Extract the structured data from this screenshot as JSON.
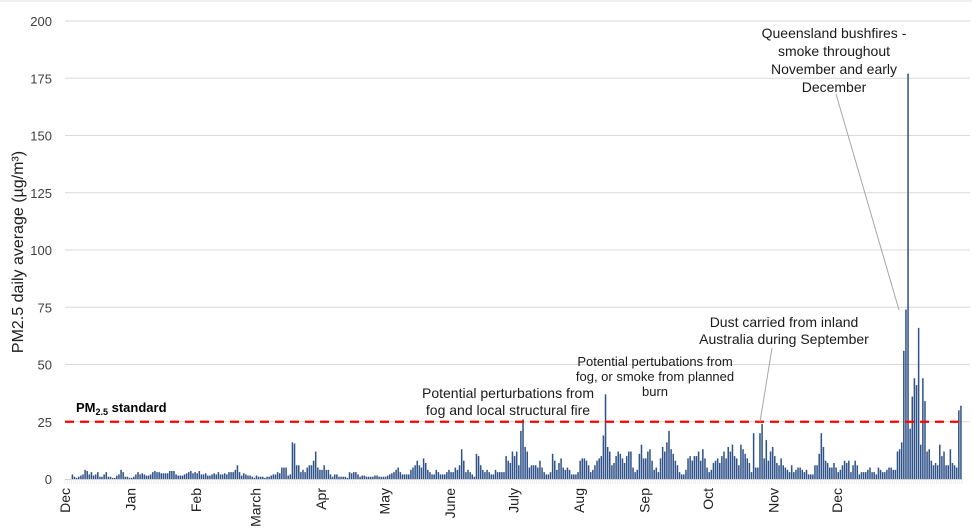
{
  "chart_data": {
    "type": "bar",
    "title": "",
    "xlabel": "",
    "ylabel": "PM2.5 daily average (µg/m³)",
    "ylim": [
      0,
      200
    ],
    "yticks": [
      0,
      25,
      50,
      75,
      100,
      125,
      150,
      175,
      200
    ],
    "grid": true,
    "bar_color": "#2f5289",
    "month_labels": [
      "Dec",
      "Jan",
      "Feb",
      "March",
      "Apr",
      "May",
      "June",
      "July",
      "Aug",
      "Sep",
      "Oct",
      "Nov",
      "Dec"
    ],
    "month_start_day_index": [
      0,
      31,
      62,
      90,
      121,
      151,
      182,
      212,
      243,
      274,
      304,
      335,
      365
    ],
    "standard": {
      "label_main": "PM",
      "label_sub": "2.5",
      "label_rest": " standard",
      "value": 25,
      "color": "#ff0000"
    },
    "series": [
      {
        "name": "PM2.5 daily average",
        "values": [
          0,
          0,
          0,
          2,
          1,
          0.5,
          1,
          1.5,
          2,
          4,
          3.5,
          2,
          3,
          1.5,
          2,
          3,
          1,
          1,
          2,
          3,
          1,
          1,
          0.5,
          0.5,
          1.5,
          2,
          4,
          3,
          1,
          1,
          0.5,
          0.5,
          1,
          2,
          3,
          2,
          2.5,
          2,
          1.5,
          1.5,
          2,
          3,
          3.5,
          3,
          3,
          2.5,
          2.5,
          2.5,
          2.5,
          3.5,
          3.5,
          3.5,
          2,
          1.5,
          1.5,
          1.5,
          2,
          2.5,
          3,
          3.5,
          2.5,
          3,
          2.5,
          3.5,
          2,
          2,
          2.5,
          1.5,
          1.5,
          2,
          2.5,
          2,
          3,
          2,
          2,
          2.5,
          2,
          3,
          3,
          3,
          4,
          6,
          3,
          1.5,
          2.5,
          2,
          1.5,
          1.5,
          1,
          0.5,
          1.5,
          1,
          1,
          1,
          0.5,
          1,
          1,
          1.5,
          2,
          2,
          3,
          2.5,
          5,
          5,
          5,
          1.5,
          2,
          16,
          15.5,
          6,
          6,
          3,
          4,
          3,
          5,
          6,
          6,
          8,
          12,
          5,
          4,
          4,
          6,
          4,
          4,
          2,
          1,
          2,
          2,
          1,
          1,
          1,
          1,
          0.5,
          3,
          2.5,
          3,
          3,
          2,
          1,
          1.5,
          1.5,
          1,
          1,
          1,
          1,
          1.5,
          1.5,
          1,
          1,
          1,
          1,
          1.5,
          2,
          2.5,
          3,
          4,
          5,
          3,
          2,
          2,
          2,
          2,
          4,
          5,
          6,
          8,
          6,
          5,
          9,
          7,
          4,
          3,
          2,
          2,
          4,
          3,
          2,
          2,
          2,
          3,
          4,
          3,
          3,
          5,
          4,
          6,
          13,
          8,
          3,
          4,
          3,
          2,
          1,
          11,
          10,
          6,
          4,
          3,
          4,
          3,
          2,
          2,
          4,
          3,
          3,
          3,
          3,
          10,
          8,
          7,
          12,
          10,
          12,
          6,
          21,
          26,
          14,
          12,
          5,
          6,
          6,
          6,
          5,
          8,
          5,
          3,
          2,
          2,
          3,
          11,
          8,
          4,
          7,
          9,
          5,
          4,
          5,
          4,
          2,
          2,
          2,
          3,
          8,
          9,
          9,
          8,
          6,
          3,
          4,
          6,
          8,
          9,
          10,
          19,
          37,
          14,
          12,
          6,
          7,
          10,
          12,
          11,
          9,
          7,
          10,
          12,
          12,
          5,
          3,
          4,
          11,
          15,
          9,
          9,
          12,
          13,
          8,
          4,
          5,
          3,
          9,
          14,
          12,
          16,
          21,
          13,
          11,
          8,
          6,
          3,
          2,
          2,
          4,
          9,
          10,
          8,
          10,
          10,
          12,
          8,
          13,
          9,
          5,
          3,
          4,
          7,
          8,
          9,
          7,
          10,
          12,
          9,
          14,
          12,
          15,
          10,
          9,
          6,
          15,
          13,
          11,
          9,
          7,
          3,
          20,
          5,
          5,
          20,
          24,
          9,
          17,
          8,
          12,
          14,
          10,
          7,
          6,
          9,
          6,
          5,
          4,
          3,
          6,
          3,
          4,
          5,
          5,
          4,
          3,
          4,
          2,
          2,
          2,
          6,
          6,
          11,
          20,
          14,
          8,
          7,
          5,
          5,
          7,
          5,
          3,
          4,
          6,
          8,
          7,
          8,
          3,
          6,
          8,
          6,
          2,
          3,
          3,
          3,
          4,
          5,
          3,
          3,
          2,
          5,
          4,
          3,
          3,
          4,
          5,
          5,
          4,
          4,
          12,
          13,
          16,
          56,
          74,
          177,
          22,
          36,
          44,
          41,
          66,
          15,
          44,
          34,
          12,
          13,
          8,
          6,
          7,
          6,
          15,
          10,
          12,
          6,
          6,
          13,
          7,
          6,
          5,
          30,
          32
        ]
      }
    ],
    "annotations": [
      {
        "lines": [
          "Potential perturbations from",
          "fog and local structural fire"
        ],
        "target_day": 203
      },
      {
        "lines": [
          "Potential pertubations from",
          "fog, or smoke from planned",
          "burn"
        ],
        "target_day": 232
      },
      {
        "lines": [
          "Dust carried from inland",
          "Australia during September"
        ],
        "target_day": 293
      },
      {
        "lines": [
          "Queensland bushfires -",
          "smoke throughout",
          "November and early",
          "December"
        ],
        "target_day": 346
      }
    ]
  }
}
